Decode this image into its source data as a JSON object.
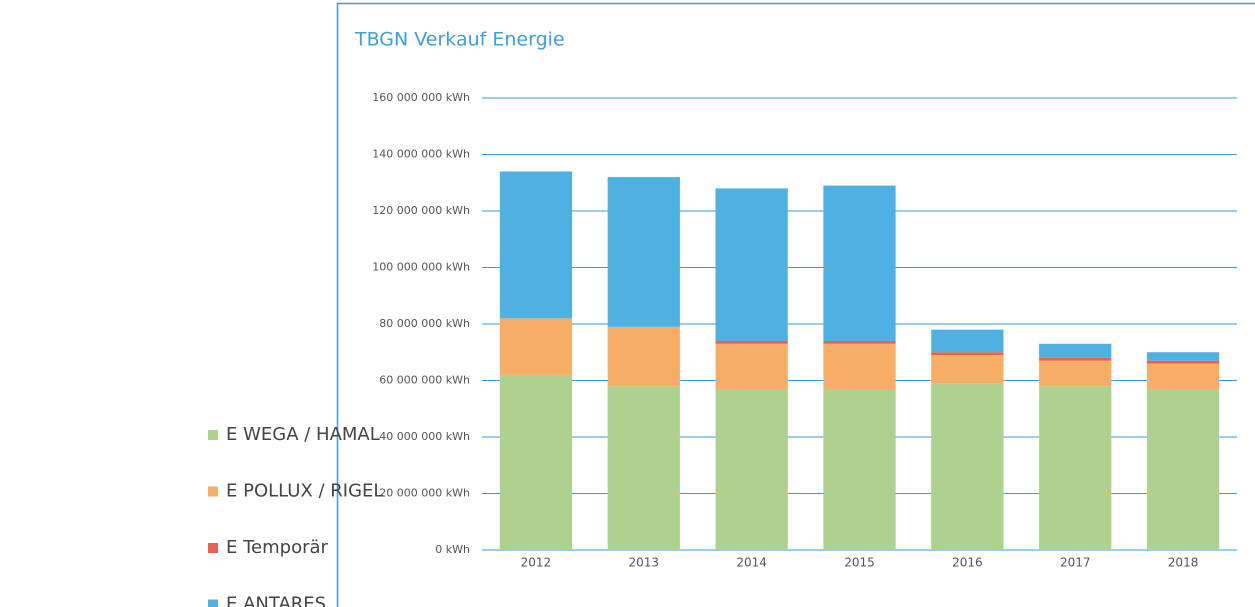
{
  "chart_data": {
    "type": "stacked_bar",
    "title": "TBGN Verkauf Energie",
    "categories": [
      "2012",
      "2013",
      "2014",
      "2015",
      "2016",
      "2017",
      "2018"
    ],
    "series": [
      {
        "name": "E WEGA / HAMAL",
        "color": "#aed18f",
        "values": [
          62000000,
          58000000,
          57000000,
          57000000,
          59000000,
          58000000,
          57000000
        ]
      },
      {
        "name": "E POLLUX / RIGEL",
        "color": "#f6ad65",
        "values": [
          20000000,
          21000000,
          16000000,
          16000000,
          10000000,
          9000000,
          9000000
        ]
      },
      {
        "name": "E Temporär",
        "color": "#e8614a",
        "values": [
          0,
          0,
          1000000,
          1000000,
          1000000,
          1000000,
          1000000
        ]
      },
      {
        "name": "E ANTARES",
        "color": "#4fb1e2",
        "values": [
          52000000,
          53000000,
          54000000,
          55000000,
          8000000,
          5000000,
          3000000
        ]
      }
    ],
    "ylim": [
      0,
      160000000
    ],
    "yticks": [
      {
        "value": 0,
        "label": "0 kWh"
      },
      {
        "value": 20000000,
        "label": "20 000 000 kWh"
      },
      {
        "value": 40000000,
        "label": "40 000 000 kWh"
      },
      {
        "value": 60000000,
        "label": "60 000 000 kWh"
      },
      {
        "value": 80000000,
        "label": "80 000 000 kWh"
      },
      {
        "value": 100000000,
        "label": "100 000 000 kWh"
      },
      {
        "value": 120000000,
        "label": "120 000 000 kWh"
      },
      {
        "value": 140000000,
        "label": "140 000 000 kWh"
      },
      {
        "value": 160000000,
        "label": "160 000 000 kWh"
      }
    ],
    "grid": true,
    "legend": "left"
  }
}
